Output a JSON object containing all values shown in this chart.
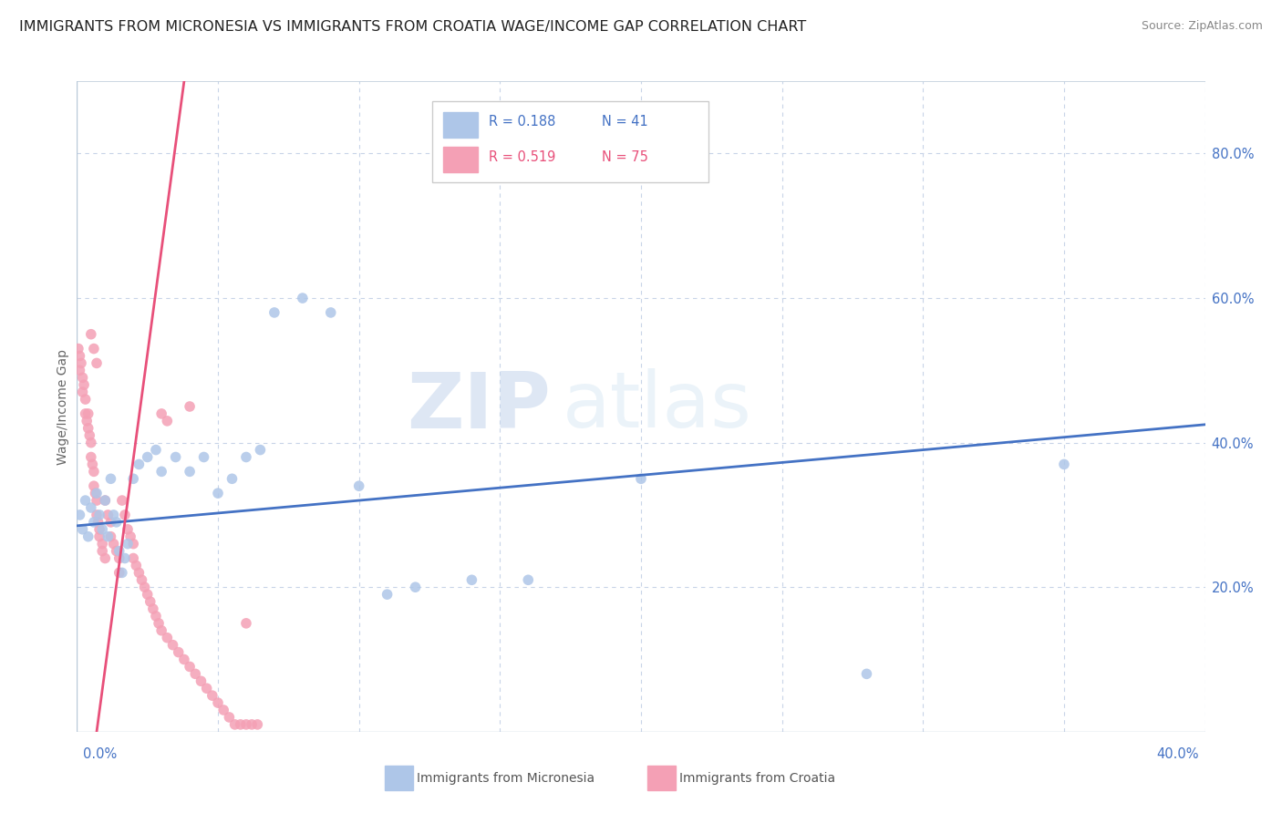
{
  "title": "IMMIGRANTS FROM MICRONESIA VS IMMIGRANTS FROM CROATIA WAGE/INCOME GAP CORRELATION CHART",
  "source": "Source: ZipAtlas.com",
  "ylabel": "Wage/Income Gap",
  "watermark_zip": "ZIP",
  "watermark_atlas": "atlas",
  "legend_r1": "R = 0.188",
  "legend_n1": "N = 41",
  "legend_r2": "R = 0.519",
  "legend_n2": "N = 75",
  "micronesia_color": "#aec6e8",
  "croatia_color": "#f4a0b5",
  "micronesia_line_color": "#4472c4",
  "croatia_line_color": "#e8507a",
  "micronesia_label": "Immigrants from Micronesia",
  "croatia_label": "Immigrants from Croatia",
  "micronesia_x": [
    0.001,
    0.002,
    0.003,
    0.004,
    0.005,
    0.006,
    0.007,
    0.008,
    0.009,
    0.01,
    0.011,
    0.012,
    0.013,
    0.014,
    0.015,
    0.016,
    0.017,
    0.018,
    0.02,
    0.022,
    0.025,
    0.028,
    0.03,
    0.035,
    0.04,
    0.045,
    0.05,
    0.055,
    0.06,
    0.065,
    0.07,
    0.08,
    0.09,
    0.1,
    0.11,
    0.12,
    0.14,
    0.16,
    0.2,
    0.28,
    0.35
  ],
  "micronesia_y": [
    0.3,
    0.28,
    0.32,
    0.27,
    0.31,
    0.29,
    0.33,
    0.3,
    0.28,
    0.32,
    0.27,
    0.35,
    0.3,
    0.29,
    0.25,
    0.22,
    0.24,
    0.26,
    0.35,
    0.37,
    0.38,
    0.39,
    0.36,
    0.38,
    0.36,
    0.38,
    0.33,
    0.35,
    0.38,
    0.39,
    0.58,
    0.6,
    0.58,
    0.34,
    0.19,
    0.2,
    0.21,
    0.21,
    0.35,
    0.08,
    0.37
  ],
  "croatia_x": [
    0.0005,
    0.001,
    0.001,
    0.0015,
    0.002,
    0.002,
    0.0025,
    0.003,
    0.003,
    0.0035,
    0.004,
    0.004,
    0.0045,
    0.005,
    0.005,
    0.0055,
    0.006,
    0.006,
    0.0065,
    0.007,
    0.007,
    0.0075,
    0.008,
    0.008,
    0.009,
    0.009,
    0.01,
    0.01,
    0.011,
    0.012,
    0.012,
    0.013,
    0.014,
    0.015,
    0.015,
    0.016,
    0.017,
    0.018,
    0.019,
    0.02,
    0.02,
    0.021,
    0.022,
    0.023,
    0.024,
    0.025,
    0.026,
    0.027,
    0.028,
    0.029,
    0.03,
    0.032,
    0.034,
    0.036,
    0.038,
    0.04,
    0.042,
    0.044,
    0.046,
    0.048,
    0.05,
    0.052,
    0.054,
    0.056,
    0.058,
    0.06,
    0.062,
    0.064,
    0.03,
    0.032,
    0.005,
    0.006,
    0.007,
    0.04,
    0.06
  ],
  "croatia_y": [
    0.53,
    0.52,
    0.5,
    0.51,
    0.49,
    0.47,
    0.48,
    0.46,
    0.44,
    0.43,
    0.44,
    0.42,
    0.41,
    0.4,
    0.38,
    0.37,
    0.36,
    0.34,
    0.33,
    0.32,
    0.3,
    0.29,
    0.28,
    0.27,
    0.26,
    0.25,
    0.24,
    0.32,
    0.3,
    0.29,
    0.27,
    0.26,
    0.25,
    0.24,
    0.22,
    0.32,
    0.3,
    0.28,
    0.27,
    0.26,
    0.24,
    0.23,
    0.22,
    0.21,
    0.2,
    0.19,
    0.18,
    0.17,
    0.16,
    0.15,
    0.14,
    0.13,
    0.12,
    0.11,
    0.1,
    0.09,
    0.08,
    0.07,
    0.06,
    0.05,
    0.04,
    0.03,
    0.02,
    0.01,
    0.01,
    0.01,
    0.01,
    0.01,
    0.44,
    0.43,
    0.55,
    0.53,
    0.51,
    0.45,
    0.15
  ],
  "xlim": [
    0.0,
    0.4
  ],
  "ylim": [
    0.0,
    0.9
  ],
  "background_color": "#ffffff",
  "grid_color": "#c8d4e8",
  "title_fontsize": 11.5,
  "source_fontsize": 9,
  "axis_label_fontsize": 10,
  "tick_fontsize": 10.5
}
